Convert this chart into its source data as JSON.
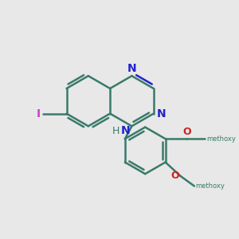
{
  "bg_color": "#e8e8e8",
  "bond_color": "#3a7a6a",
  "nitrogen_color": "#2222cc",
  "iodine_color": "#cc44cc",
  "oxygen_color": "#cc2222",
  "nh_color": "#3a7a6a",
  "bond_width": 1.8,
  "figsize": [
    3.0,
    3.0
  ],
  "dpi": 100,
  "xlim": [
    0,
    300
  ],
  "ylim": [
    0,
    300
  ]
}
